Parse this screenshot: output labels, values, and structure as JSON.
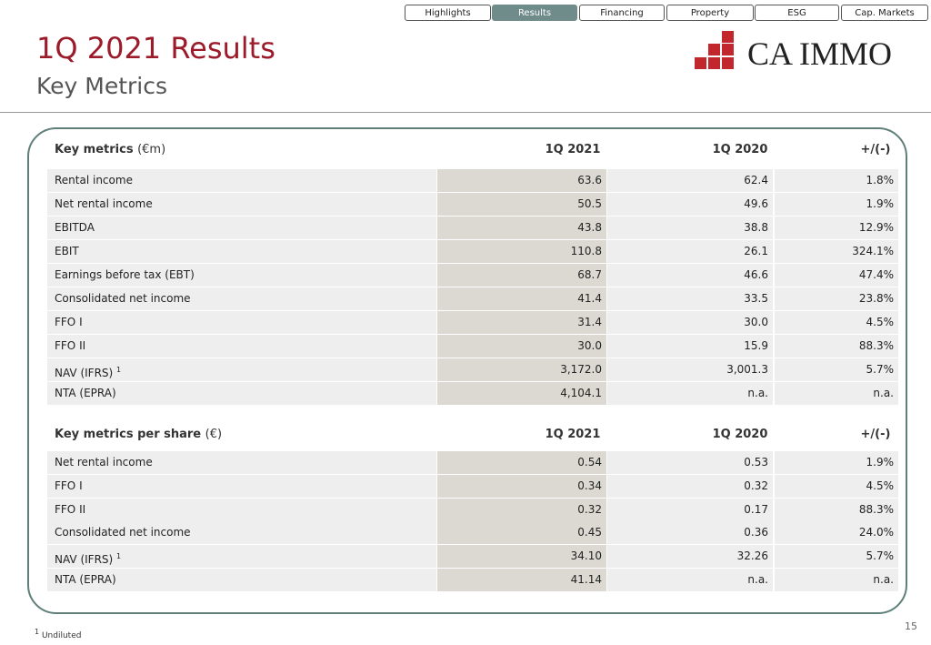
{
  "nav_tabs": [
    "Highlights",
    "Results",
    "Financing",
    "Property",
    "ESG",
    "Cap. Markets"
  ],
  "active_tab": 1,
  "header": {
    "title": "1Q 2021 Results",
    "subtitle": "Key Metrics",
    "logo_text": "CA IMMO"
  },
  "tables": [
    {
      "title": "Key metrics",
      "unit": "(€m)",
      "columns": [
        "1Q 2021",
        "1Q 2020",
        "+/(-)"
      ],
      "rows": [
        {
          "label": "Rental income",
          "values": [
            "63.6",
            "62.4",
            "1.8%"
          ]
        },
        {
          "label": "Net rental income",
          "values": [
            "50.5",
            "49.6",
            "1.9%"
          ]
        },
        {
          "label": "EBITDA",
          "values": [
            "43.8",
            "38.8",
            "12.9%"
          ]
        },
        {
          "label": "EBIT",
          "values": [
            "110.8",
            "26.1",
            "324.1%"
          ]
        },
        {
          "label": "Earnings before tax (EBT)",
          "values": [
            "68.7",
            "46.6",
            "47.4%"
          ]
        },
        {
          "label": "Consolidated net income",
          "values": [
            "41.4",
            "33.5",
            "23.8%"
          ]
        },
        {
          "label": "FFO I",
          "values": [
            "31.4",
            "30.0",
            "4.5%"
          ]
        },
        {
          "label": "FFO II",
          "values": [
            "30.0",
            "15.9",
            "88.3%"
          ]
        },
        {
          "label": "NAV (IFRS)",
          "note": "1",
          "values": [
            "3,172.0",
            "3,001.3",
            "5.7%"
          ]
        },
        {
          "label": "NTA (EPRA)",
          "values": [
            "4,104.1",
            "n.a.",
            "n.a."
          ]
        }
      ]
    },
    {
      "title": "Key metrics per share",
      "unit": "(€)",
      "columns": [
        "1Q 2021",
        "1Q 2020",
        "+/(-)"
      ],
      "rows": [
        {
          "label": "Net rental income",
          "values": [
            "0.54",
            "0.53",
            "1.9%"
          ]
        },
        {
          "label": "FFO I",
          "values": [
            "0.34",
            "0.32",
            "4.5%"
          ]
        },
        {
          "label": "FFO II",
          "values": [
            "0.32",
            "0.17",
            "88.3%"
          ]
        },
        {
          "label": "Consolidated net income",
          "values": [
            "0.45",
            "0.36",
            "24.0%"
          ]
        },
        {
          "label": "NAV (IFRS)",
          "note": "1",
          "values": [
            "34.10",
            "32.26",
            "5.7%"
          ]
        },
        {
          "label": "NTA (EPRA)",
          "values": [
            "41.14",
            "n.a.",
            "n.a."
          ]
        }
      ]
    }
  ],
  "footnote": {
    "marker": "1",
    "text": "Undiluted"
  },
  "page_number": "15"
}
